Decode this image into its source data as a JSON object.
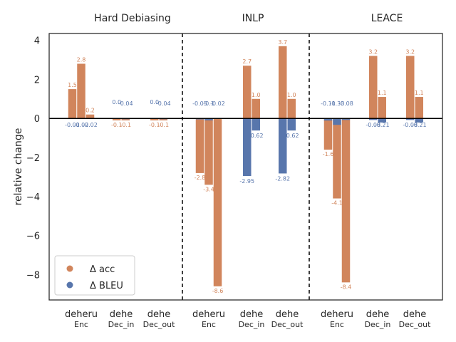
{
  "chart_data": {
    "type": "bar",
    "ylabel": "relative change",
    "ylim": [
      -9.3,
      4.35
    ],
    "yticks": [
      4,
      2,
      0,
      -2,
      -4,
      -6,
      -8
    ],
    "ytick_labels": [
      "4",
      "2",
      "0",
      "−2",
      "−4",
      "−6",
      "−8"
    ],
    "colors": {
      "acc": "#d1855c",
      "bleu": "#5876ac"
    },
    "legend": [
      {
        "key": "acc",
        "label": "Δ acc"
      },
      {
        "key": "bleu",
        "label": "Δ BLEU"
      }
    ],
    "legend_position": "bottom-left",
    "groups": [
      {
        "title": "Hard Debiasing",
        "subgroups": [
          {
            "label": "Enc",
            "langs": "deheru",
            "acc": [
              1.5,
              2.8,
              0.2
            ],
            "bleu": [
              -0.01,
              -0.02,
              -0.02
            ],
            "acc_labels": [
              "1.5",
              "2.8",
              "0.2"
            ],
            "bleu_labels": [
              "-0.01",
              "-0.02",
              "-0.02"
            ]
          },
          {
            "label": "Dec_in",
            "langs": "dehe",
            "acc": [
              -0.1,
              -0.1
            ],
            "bleu": [
              0.0,
              -0.04
            ],
            "acc_labels": [
              "-0.1",
              "-0.1"
            ],
            "bleu_labels": [
              "0.0",
              "-0.04"
            ]
          },
          {
            "label": "Dec_out",
            "langs": "dehe",
            "acc": [
              -0.1,
              -0.1
            ],
            "bleu": [
              0.0,
              -0.04
            ],
            "acc_labels": [
              "-0.1",
              "-0.1"
            ],
            "bleu_labels": [
              "0.0",
              "-0.04"
            ]
          }
        ]
      },
      {
        "title": "INLP",
        "subgroups": [
          {
            "label": "Enc",
            "langs": "deheru",
            "acc": [
              -2.8,
              -3.4,
              -8.6
            ],
            "bleu": [
              -0.05,
              -0.1,
              -0.02
            ],
            "acc_labels": [
              "-2.8",
              "-3.4",
              "-8.6"
            ],
            "bleu_labels": [
              "-0.05",
              "-0.1",
              "-0.02"
            ]
          },
          {
            "label": "Dec_in",
            "langs": "dehe",
            "acc": [
              2.7,
              1.0
            ],
            "bleu": [
              -2.95,
              -0.62
            ],
            "acc_labels": [
              "2.7",
              "1.0"
            ],
            "bleu_labels": [
              "-2.95",
              "-0.62"
            ]
          },
          {
            "label": "Dec_out",
            "langs": "dehe",
            "acc": [
              3.7,
              1.0
            ],
            "bleu": [
              -2.82,
              -0.62
            ],
            "acc_labels": [
              "3.7",
              "1.0"
            ],
            "bleu_labels": [
              "-2.82",
              "-0.62"
            ]
          }
        ]
      },
      {
        "title": "LEACE",
        "subgroups": [
          {
            "label": "Enc",
            "langs": "deheru",
            "acc": [
              -1.6,
              -4.1,
              -8.4
            ],
            "bleu": [
              -0.11,
              -0.33,
              -0.08
            ],
            "acc_labels": [
              "-1.6",
              "-4.1",
              "-8.4"
            ],
            "bleu_labels": [
              "-0.11",
              "-0.33",
              "-0.08"
            ]
          },
          {
            "label": "Dec_in",
            "langs": "dehe",
            "acc": [
              3.2,
              1.1
            ],
            "bleu": [
              -0.08,
              -0.21
            ],
            "acc_labels": [
              "3.2",
              "1.1"
            ],
            "bleu_labels": [
              "-0.08",
              "-0.21"
            ]
          },
          {
            "label": "Dec_out",
            "langs": "dehe",
            "acc": [
              3.2,
              1.1
            ],
            "bleu": [
              -0.08,
              -0.21
            ],
            "acc_labels": [
              "3.2",
              "1.1"
            ],
            "bleu_labels": [
              "-0.08",
              "-0.21"
            ]
          }
        ]
      }
    ]
  }
}
